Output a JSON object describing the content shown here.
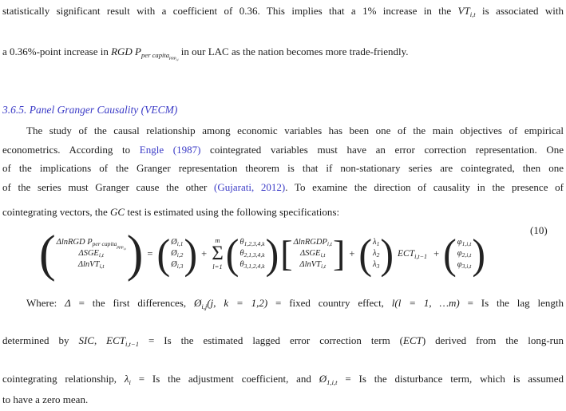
{
  "colors": {
    "text": "#1b1b1b",
    "accent_blue": "#3a3ac6",
    "background": "#ffffff"
  },
  "heading": {
    "text": "3.6.5. Panel Granger Causality (VECM)"
  },
  "para1": {
    "lines": [
      [
        {
          "t": "statistically significant result with a coefficient of 0.36. This implies that a 1% increase in the "
        },
        {
          "m": "VT"
        },
        {
          "sub": [
            {
              "m": "i,t"
            }
          ]
        },
        {
          "t": " is associated with"
        }
      ],
      [
        {
          "t": "a 0.36%-point increase in "
        },
        {
          "m": "RGD P"
        },
        {
          "sub": [
            {
              "m": "per capita"
            },
            {
              "sub": [
                {
                  "m": "ppp"
                },
                {
                  "sub": [
                    {
                      "m": "i,t"
                    }
                  ]
                }
              ]
            }
          ]
        },
        {
          "t": " in our LAC as the nation becomes more trade-friendly."
        }
      ]
    ]
  },
  "para2": {
    "lines": [
      [
        {
          "t": "The study of the causal relationship among economic variables has been one of the main objectives of empirical"
        }
      ],
      [
        {
          "t": "econometrics. According to "
        },
        {
          "l": "Engle (1987)"
        },
        {
          "t": " cointegrated variables must have an error correction representation. One"
        }
      ],
      [
        {
          "t": "of the implications of the Granger representation theorem is that if non-stationary series are cointegrated, then one"
        }
      ],
      [
        {
          "t": "of the series must Granger cause the other "
        },
        {
          "l": "(Gujarati, 2012)"
        },
        {
          "t": ". To examine the direction of causality in the presence of"
        }
      ]
    ]
  },
  "eqintro": {
    "lines": [
      [
        {
          "t": "cointegrating vectors, the "
        },
        {
          "m": "GC"
        },
        {
          "t": " test is estimated using the following specifications:"
        }
      ]
    ]
  },
  "equation": {
    "number": "(10)",
    "lhs": [
      [
        {
          "m": "ΔlnRGD P"
        },
        {
          "sub": [
            {
              "m": "per capita"
            },
            {
              "sub": [
                {
                  "m": "ppp"
                },
                {
                  "sub": [
                    {
                      "m": "i,t"
                    }
                  ]
                }
              ]
            }
          ]
        }
      ],
      [
        {
          "m": "ΔSGE"
        },
        {
          "sub": [
            {
              "m": "i,t"
            }
          ]
        }
      ],
      [
        {
          "m": "ΔlnVT"
        },
        {
          "sub": [
            {
              "m": "i,t"
            }
          ]
        }
      ]
    ],
    "phi": [
      [
        {
          "m": "Ø"
        },
        {
          "sub": [
            {
              "m": "i,1"
            }
          ]
        }
      ],
      [
        {
          "m": "Ø"
        },
        {
          "sub": [
            {
              "m": "i,2"
            }
          ]
        }
      ],
      [
        {
          "m": "Ø"
        },
        {
          "sub": [
            {
              "m": "i,3"
            }
          ]
        }
      ]
    ],
    "sigma": "Σ",
    "sum_top": "m",
    "sum_bottom": "l=1",
    "theta": [
      [
        {
          "m": "θ"
        },
        {
          "sub": [
            {
              "m": "1,2,3,4,k"
            }
          ]
        }
      ],
      [
        {
          "m": "θ"
        },
        {
          "sub": [
            {
              "m": "2,1,3,4,k"
            }
          ]
        }
      ],
      [
        {
          "m": "θ"
        },
        {
          "sub": [
            {
              "m": "3,1,2,4,k"
            }
          ]
        }
      ]
    ],
    "delta": [
      [
        {
          "m": "ΔlnRGDP"
        },
        {
          "sub": [
            {
              "m": "i,t"
            }
          ]
        }
      ],
      [
        {
          "m": "ΔSGE"
        },
        {
          "sub": [
            {
              "m": "i,t"
            }
          ]
        }
      ],
      [
        {
          "m": "ΔlnVT"
        },
        {
          "sub": [
            {
              "m": "i,t"
            }
          ]
        }
      ]
    ],
    "lambda": [
      [
        {
          "m": "λ"
        },
        {
          "sub": [
            {
              "m": "1"
            }
          ]
        }
      ],
      [
        {
          "m": "λ"
        },
        {
          "sub": [
            {
              "m": "2"
            }
          ]
        }
      ],
      [
        {
          "m": "λ"
        },
        {
          "sub": [
            {
              "m": "3"
            }
          ]
        }
      ]
    ],
    "ect": [
      {
        "m": "ECT"
      },
      {
        "sub": [
          {
            "m": "i,t−1"
          }
        ]
      }
    ],
    "phi2": [
      [
        {
          "m": "φ"
        },
        {
          "sub": [
            {
              "m": "1,i,t"
            }
          ]
        }
      ],
      [
        {
          "m": "φ"
        },
        {
          "sub": [
            {
              "m": "2,i,t"
            }
          ]
        }
      ],
      [
        {
          "m": "φ"
        },
        {
          "sub": [
            {
              "m": "3,i,t"
            }
          ]
        }
      ]
    ],
    "ops": {
      "eq": "=",
      "plus": "+"
    },
    "parens": {
      "open": "(",
      "close": ")",
      "bopen": "[",
      "bclose": "]"
    }
  },
  "para3": {
    "lines": [
      [
        {
          "t": "Where: "
        },
        {
          "m": "Δ"
        },
        {
          "t": " = the first differences, "
        },
        {
          "m": "Ø"
        },
        {
          "sub": [
            {
              "m": "i,j"
            }
          ]
        },
        {
          "m": "(j, k = 1,2)"
        },
        {
          "t": " = fixed country effect, "
        },
        {
          "m": "l(l = 1, …m)"
        },
        {
          "t": " = Is the lag length"
        }
      ],
      [
        {
          "t": "determined by "
        },
        {
          "m": "SIC"
        },
        {
          "t": ", "
        },
        {
          "m": "ECT"
        },
        {
          "sub": [
            {
              "m": "i,t−1"
            }
          ]
        },
        {
          "t": " = Is the estimated lagged error correction term ("
        },
        {
          "m": "ECT"
        },
        {
          "t": ") derived from the long-run"
        }
      ],
      [
        {
          "t": "cointegrating relationship, "
        },
        {
          "m": "λ"
        },
        {
          "sub": [
            {
              "m": "i"
            }
          ]
        },
        {
          "t": " = Is the adjustment coefficient, and "
        },
        {
          "m": "Ø"
        },
        {
          "sub": [
            {
              "m": "1,i,t"
            }
          ]
        },
        {
          "t": " = Is the disturbance term, which is assumed"
        }
      ],
      [
        {
          "t": "to have a zero mean."
        }
      ]
    ]
  }
}
